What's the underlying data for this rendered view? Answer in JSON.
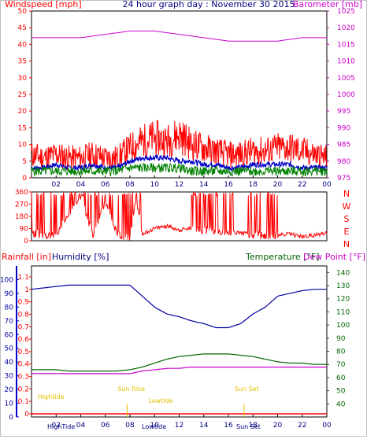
{
  "title": "24 hour graph day : November 30 2015",
  "colors": {
    "wind": "#ff0000",
    "gust": "#ff0000",
    "avg": "#0000c8",
    "windGreen": "#008000",
    "baro": "#cc00cc",
    "humidity": "#0000a0",
    "temp": "#006400",
    "dew": "#cc00cc",
    "rain": "#ff0000",
    "tide": "#e0c000",
    "axis": "#000000"
  },
  "chart_data": [
    {
      "type": "line",
      "name": "wind-barometer",
      "left_axis": {
        "label": "Windspeed [mph]",
        "ticks": [
          0,
          5,
          10,
          15,
          20,
          25,
          30,
          35,
          40,
          45,
          50
        ],
        "range": [
          0,
          50
        ]
      },
      "right_axis": {
        "label": "Barometer [mb]",
        "ticks": [
          975,
          980,
          985,
          990,
          995,
          1000,
          1005,
          1010,
          1015,
          1020,
          1025
        ],
        "range": [
          975,
          1025
        ]
      },
      "x_ticks": [
        "02",
        "04",
        "06",
        "08",
        "10",
        "12",
        "14",
        "16",
        "18",
        "20",
        "22",
        "00"
      ],
      "x_range": [
        0,
        24
      ],
      "series": [
        {
          "role": "gust",
          "x": [
            0,
            1,
            2,
            3,
            4,
            5,
            6,
            7,
            8,
            9,
            10,
            11,
            12,
            13,
            14,
            15,
            16,
            17,
            18,
            19,
            20,
            21,
            22,
            23,
            24
          ],
          "y": [
            7,
            6,
            7,
            6,
            6,
            7,
            6,
            6,
            9,
            11,
            12,
            11,
            13,
            10,
            9,
            8,
            7,
            7,
            8,
            8,
            9,
            9,
            8,
            7,
            6
          ]
        },
        {
          "role": "avg",
          "x": [
            0,
            1,
            2,
            3,
            4,
            5,
            6,
            7,
            8,
            9,
            10,
            11,
            12,
            13,
            14,
            15,
            16,
            17,
            18,
            19,
            20,
            21,
            22,
            23,
            24
          ],
          "y": [
            3,
            3,
            4,
            3,
            3,
            4,
            3,
            3,
            5,
            6,
            6,
            6,
            5,
            5,
            4,
            4,
            3,
            3,
            4,
            4,
            4,
            4,
            3,
            3,
            3
          ]
        },
        {
          "role": "wind",
          "x": [
            0,
            1,
            2,
            3,
            4,
            5,
            6,
            7,
            8,
            9,
            10,
            11,
            12,
            13,
            14,
            15,
            16,
            17,
            18,
            19,
            20,
            21,
            22,
            23,
            24
          ],
          "y": [
            2,
            2,
            2,
            2,
            2,
            2,
            2,
            2,
            3,
            3,
            3,
            3,
            3,
            2,
            2,
            2,
            2,
            2,
            2,
            2,
            2,
            2,
            2,
            2,
            2
          ]
        },
        {
          "role": "barometer",
          "x": [
            0,
            2,
            4,
            6,
            8,
            10,
            12,
            14,
            16,
            18,
            20,
            22,
            24
          ],
          "y": [
            1017,
            1017,
            1017,
            1018,
            1019,
            1019,
            1018,
            1017,
            1016,
            1016,
            1016,
            1017,
            1017
          ]
        }
      ]
    },
    {
      "type": "line",
      "name": "wind-direction",
      "left_axis": {
        "ticks": [
          0,
          90,
          180,
          270,
          360
        ],
        "range": [
          0,
          360
        ]
      },
      "right_labels": [
        "N",
        "W",
        "S",
        "E",
        "N"
      ],
      "x_range": [
        0,
        24
      ],
      "series": [
        {
          "role": "direction",
          "x": [
            0,
            1,
            2,
            3,
            4,
            5,
            6,
            7,
            8,
            8.5,
            9,
            10,
            11,
            12,
            13,
            14,
            15,
            16,
            17,
            18,
            19,
            20,
            21,
            22,
            23,
            24
          ],
          "y": [
            60,
            40,
            30,
            200,
            340,
            30,
            300,
            40,
            30,
            330,
            50,
            90,
            110,
            80,
            90,
            80,
            70,
            60,
            60,
            40,
            40,
            40,
            50,
            30,
            40,
            60
          ]
        }
      ]
    },
    {
      "type": "line",
      "name": "rain-humidity-temperature",
      "left_axis_rain": {
        "label": "Rainfall [in]",
        "ticks": [
          0,
          0.1,
          0.2,
          0.3,
          0.4,
          0.5,
          0.6,
          0.7,
          0.8,
          0.9,
          1,
          1.1
        ],
        "range": [
          0,
          1.1
        ]
      },
      "left_axis_humidity": {
        "label": "Humidity [%]",
        "ticks": [
          0,
          10,
          20,
          30,
          40,
          50,
          60,
          70,
          80,
          90,
          100
        ],
        "range": [
          0,
          110
        ]
      },
      "right_axis": {
        "label_temp": "Temperature [°F]",
        "label_dew": "Dew Point [°F]",
        "ticks": [
          40,
          50,
          60,
          70,
          80,
          90,
          100,
          110,
          120,
          130,
          140
        ],
        "range": [
          30,
          145
        ]
      },
      "x_ticks": [
        "02",
        "04",
        "06",
        "08",
        "10",
        "12",
        "14",
        "16",
        "18",
        "20",
        "22",
        "00"
      ],
      "x_range": [
        0,
        24
      ],
      "tide_labels": [
        {
          "text": "Hightide",
          "x": 0.5,
          "level": "low"
        },
        {
          "text": "Sun Rise",
          "x": 7.0,
          "level": "mid"
        },
        {
          "text": "Lowtide",
          "x": 9.5,
          "level": "lower"
        },
        {
          "text": "Sun Set",
          "x": 16.5,
          "level": "mid"
        }
      ],
      "bottom_labels": [
        "HighTide",
        "Lowtide",
        "Sun Set"
      ],
      "series": [
        {
          "role": "humidity",
          "x": [
            0,
            1,
            2,
            3,
            4,
            5,
            6,
            7,
            8,
            9,
            10,
            11,
            12,
            13,
            14,
            15,
            16,
            17,
            18,
            19,
            20,
            21,
            22,
            23,
            24
          ],
          "y": [
            93,
            94,
            95,
            96,
            96,
            96,
            96,
            96,
            96,
            88,
            80,
            75,
            73,
            70,
            68,
            65,
            65,
            68,
            75,
            80,
            88,
            90,
            92,
            93,
            93
          ]
        },
        {
          "role": "temperature",
          "x": [
            0,
            1,
            2,
            3,
            4,
            5,
            6,
            7,
            8,
            9,
            10,
            11,
            12,
            13,
            14,
            15,
            16,
            17,
            18,
            19,
            20,
            21,
            22,
            23,
            24
          ],
          "y": [
            66,
            66,
            66,
            65,
            65,
            65,
            65,
            65,
            66,
            68,
            71,
            74,
            76,
            77,
            78,
            78,
            78,
            77,
            76,
            74,
            72,
            71,
            71,
            70,
            70
          ]
        },
        {
          "role": "dewpoint",
          "x": [
            0,
            1,
            2,
            3,
            4,
            5,
            6,
            7,
            8,
            9,
            10,
            11,
            12,
            13,
            14,
            15,
            16,
            17,
            18,
            19,
            20,
            21,
            22,
            23,
            24
          ],
          "y": [
            63,
            63,
            63,
            63,
            63,
            63,
            63,
            63,
            63,
            65,
            66,
            67,
            67,
            68,
            68,
            68,
            68,
            68,
            68,
            68,
            68,
            68,
            68,
            68,
            68
          ]
        },
        {
          "role": "rain",
          "x": [
            0,
            24
          ],
          "y": [
            0,
            0
          ]
        }
      ]
    }
  ]
}
